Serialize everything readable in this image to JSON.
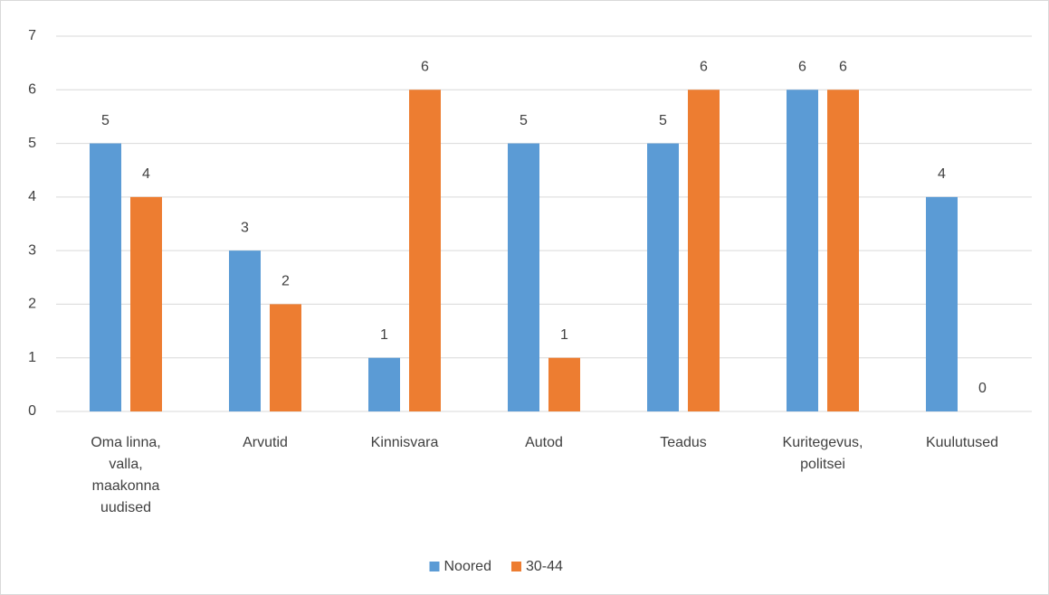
{
  "chart_data": {
    "type": "bar",
    "categories": [
      "Oma linna, valla, maakonna uudised",
      "Arvutid",
      "Kinnisvara",
      "Autod",
      "Teadus",
      "Kuritegevus, politsei",
      "Kuulutused"
    ],
    "series": [
      {
        "name": "Noored",
        "color": "#5b9bd5",
        "values": [
          5,
          3,
          1,
          5,
          5,
          6,
          4
        ]
      },
      {
        "name": "30-44",
        "color": "#ed7d31",
        "values": [
          4,
          2,
          6,
          1,
          6,
          6,
          0
        ]
      }
    ],
    "ylim": [
      0,
      7
    ],
    "yticks": [
      0,
      1,
      2,
      3,
      4,
      5,
      6,
      7
    ],
    "grid": true,
    "legend": "bottom"
  }
}
